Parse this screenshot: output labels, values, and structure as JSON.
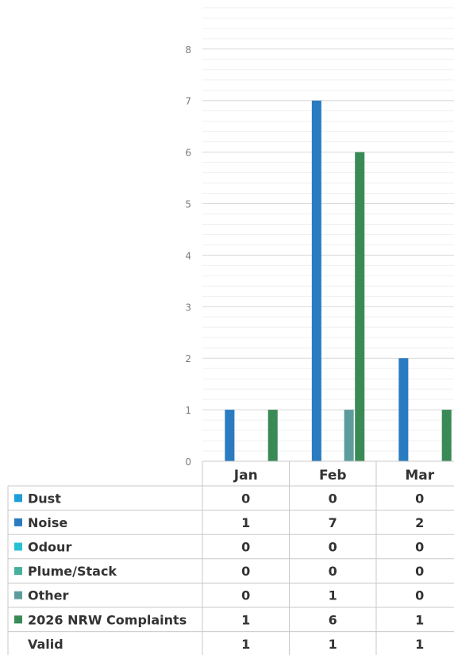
{
  "chart_data": {
    "type": "bar",
    "categories": [
      "Jan",
      "Feb",
      "Mar"
    ],
    "ylim": [
      0,
      8
    ],
    "yticks": [
      0,
      1,
      2,
      3,
      4,
      5,
      6,
      7,
      8
    ],
    "grid": true,
    "legend": "data-table-below",
    "series": [
      {
        "name": "Dust",
        "color": "#1f9ed8",
        "values": [
          0,
          0,
          0
        ]
      },
      {
        "name": "Noise",
        "color": "#2a7bc0",
        "values": [
          1,
          7,
          2
        ]
      },
      {
        "name": "Odour",
        "color": "#27c1d4",
        "values": [
          0,
          0,
          0
        ]
      },
      {
        "name": "Plume/Stack",
        "color": "#46b09a",
        "values": [
          0,
          0,
          0
        ]
      },
      {
        "name": "Other",
        "color": "#5d9c9c",
        "values": [
          0,
          1,
          0
        ]
      },
      {
        "name": "2026 NRW Complaints",
        "color": "#3a8a55",
        "values": [
          1,
          6,
          1
        ]
      }
    ],
    "table_rows": [
      {
        "name": "Valid",
        "values": [
          1,
          1,
          1
        ]
      }
    ]
  }
}
